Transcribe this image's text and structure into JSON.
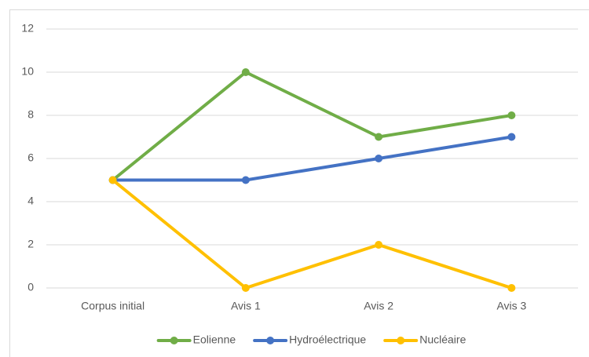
{
  "chart_data": {
    "type": "line",
    "categories": [
      "Corpus initial",
      "Avis 1",
      "Avis 2",
      "Avis 3"
    ],
    "series": [
      {
        "name": "Eolienne",
        "color": "#70ad47",
        "values": [
          5,
          10,
          7,
          8
        ]
      },
      {
        "name": "Hydroélectrique",
        "color": "#4472c4",
        "values": [
          5,
          5,
          6,
          7
        ]
      },
      {
        "name": "Nucléaire",
        "color": "#ffc000",
        "values": [
          5,
          0,
          2,
          0
        ]
      }
    ],
    "ylim": [
      0,
      12
    ],
    "yticks": [
      0,
      2,
      4,
      6,
      8,
      10,
      12
    ],
    "grid": true,
    "legend": "bottom"
  }
}
